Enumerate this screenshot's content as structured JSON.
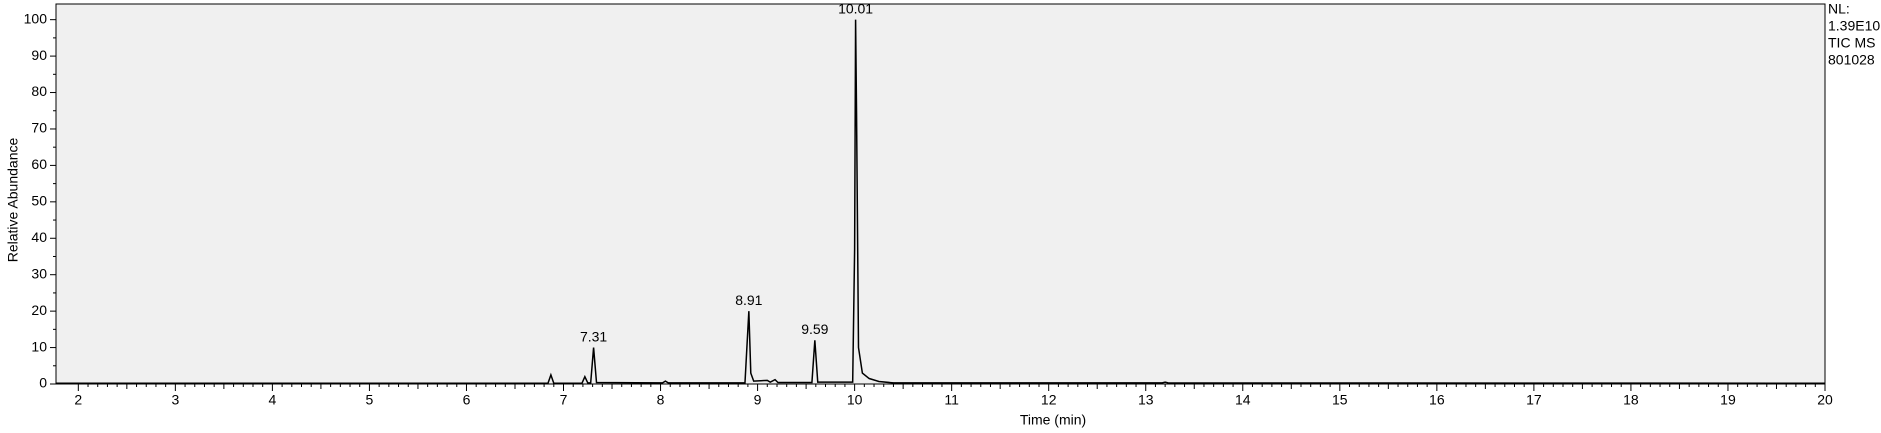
{
  "chart_data": {
    "type": "line",
    "xlabel": "Time (min)",
    "ylabel": "Relative Abundance",
    "info": [
      "NL:",
      "1.39E10",
      "TIC  MS",
      "801028"
    ],
    "xlim": [
      1.77,
      20
    ],
    "ylim": [
      0,
      104.3
    ],
    "xticks": [
      2,
      3,
      4,
      5,
      6,
      7,
      8,
      9,
      10,
      11,
      12,
      13,
      14,
      15,
      16,
      17,
      18,
      19,
      20
    ],
    "yticks": [
      0,
      10,
      20,
      30,
      40,
      50,
      60,
      70,
      80,
      90,
      100
    ],
    "grid": false,
    "series": [
      {
        "name": "TIC",
        "color": "#000000",
        "x": [
          1.77,
          6.84,
          6.87,
          6.9,
          7.19,
          7.22,
          7.25,
          7.28,
          7.31,
          7.34,
          8.02,
          8.05,
          8.08,
          8.87,
          8.91,
          8.93,
          8.96,
          9.1,
          9.13,
          9.18,
          9.21,
          9.56,
          9.59,
          9.62,
          9.98,
          10.0,
          10.01,
          10.02,
          10.04,
          10.08,
          10.15,
          10.25,
          10.4,
          13.17,
          13.2,
          13.23,
          20
        ],
        "values": [
          0.2,
          0.2,
          2.5,
          0.2,
          0.2,
          2,
          0.3,
          0.3,
          10,
          0.4,
          0.3,
          0.8,
          0.3,
          0.3,
          20,
          3,
          0.8,
          1,
          0.5,
          1.2,
          0.4,
          0.4,
          12,
          0.5,
          0.5,
          37,
          100,
          74,
          10,
          3,
          1.5,
          0.7,
          0.3,
          0.3,
          0.5,
          0.3,
          0.2
        ]
      }
    ],
    "annotations": [
      {
        "text": "7.31",
        "x": 7.31,
        "y": 10
      },
      {
        "text": "8.91",
        "x": 8.91,
        "y": 20
      },
      {
        "text": "9.59",
        "x": 9.59,
        "y": 12
      },
      {
        "text": "10.01",
        "x": 10.01,
        "y": 100
      }
    ]
  }
}
